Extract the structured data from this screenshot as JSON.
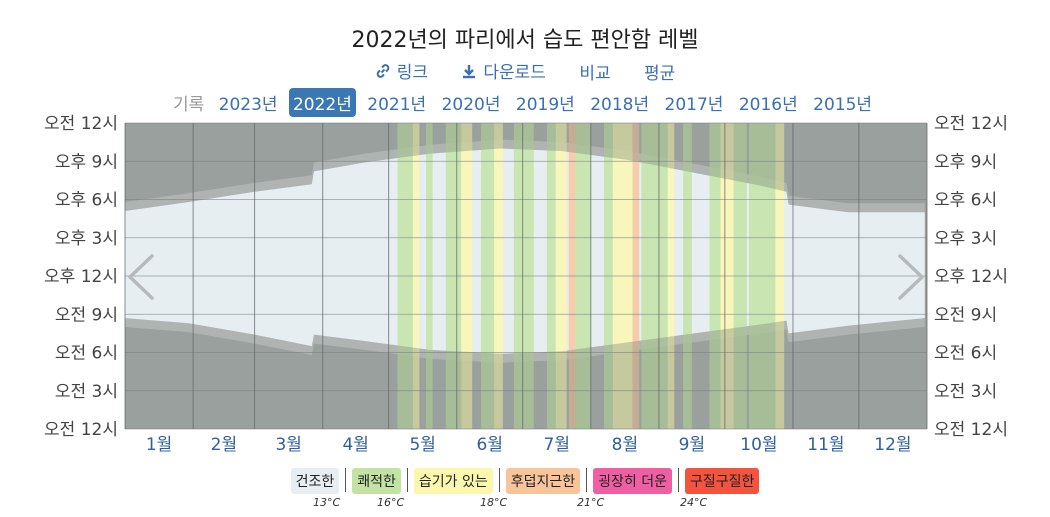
{
  "header": {
    "title": "2022년의 파리에서 습도 편안함 레벨",
    "links": [
      {
        "label": "링크",
        "icon": "link-icon"
      },
      {
        "label": "다운로드",
        "icon": "download-icon"
      },
      {
        "label": "비교",
        "icon": ""
      },
      {
        "label": "평균",
        "icon": ""
      }
    ]
  },
  "years": {
    "label": "기록",
    "items": [
      "2023년",
      "2022년",
      "2021년",
      "2020년",
      "2019년",
      "2018년",
      "2017년",
      "2016년",
      "2015년"
    ],
    "active": "2022년"
  },
  "nav": {
    "prev_icon": "chevron-left-icon",
    "next_icon": "chevron-right-icon"
  },
  "chart_data": {
    "type": "heatmap",
    "x_categories": [
      "1월",
      "2월",
      "3월",
      "4월",
      "5월",
      "6월",
      "7월",
      "8월",
      "9월",
      "10월",
      "11월",
      "12월"
    ],
    "y_ticks_left": [
      "오전 12시",
      "오후 9시",
      "오후 6시",
      "오후 3시",
      "오후 12시",
      "오전 9시",
      "오전 6시",
      "오전 3시",
      "오전 12시"
    ],
    "y_ticks_right": [
      "오전 12시",
      "오후 9시",
      "오후 6시",
      "오후 3시",
      "오후 12시",
      "오전 9시",
      "오전 6시",
      "오전 3시",
      "오전 12시"
    ],
    "ylim_hours": [
      0,
      24
    ],
    "grid": true,
    "night_band": {
      "day_of_year": [
        1,
        30,
        60,
        86,
        87,
        110,
        140,
        172,
        200,
        230,
        260,
        290,
        302,
        303,
        330,
        365
      ],
      "sunrise_hour": [
        8.7,
        8.3,
        7.4,
        6.5,
        7.4,
        6.9,
        6.2,
        5.9,
        6.1,
        6.8,
        7.5,
        8.2,
        8.5,
        7.5,
        8.1,
        8.7
      ],
      "sunset_hour": [
        17.1,
        17.8,
        18.6,
        19.2,
        20.2,
        20.9,
        21.6,
        22.0,
        21.8,
        21.1,
        20.1,
        19.1,
        18.6,
        17.6,
        17.0,
        17.0
      ]
    },
    "legend": [
      {
        "label": "건조한",
        "color": "#e6eef1"
      },
      {
        "label": "쾌적한",
        "color": "#c2e3a4"
      },
      {
        "label": "습기가 있는",
        "color": "#fbf8ad"
      },
      {
        "label": "후덥지근한",
        "color": "#f9c49a"
      },
      {
        "label": "굉장히 더운",
        "color": "#f05fa4"
      },
      {
        "label": "구질구질한",
        "color": "#f4543d"
      }
    ],
    "thresholds": [
      "13°C",
      "16°C",
      "18°C",
      "21°C",
      "24°C"
    ],
    "humid_periods": [
      {
        "start_day": 125,
        "end_day": 131,
        "level": 1
      },
      {
        "start_day": 132,
        "end_day": 134,
        "level": 2
      },
      {
        "start_day": 138,
        "end_day": 140,
        "level": 1
      },
      {
        "start_day": 147,
        "end_day": 153,
        "level": 1
      },
      {
        "start_day": 154,
        "end_day": 158,
        "level": 2
      },
      {
        "start_day": 163,
        "end_day": 168,
        "level": 1
      },
      {
        "start_day": 169,
        "end_day": 172,
        "level": 2
      },
      {
        "start_day": 178,
        "end_day": 186,
        "level": 1
      },
      {
        "start_day": 193,
        "end_day": 196,
        "level": 1
      },
      {
        "start_day": 197,
        "end_day": 201,
        "level": 2
      },
      {
        "start_day": 203,
        "end_day": 205,
        "level": 3
      },
      {
        "start_day": 206,
        "end_day": 212,
        "level": 1
      },
      {
        "start_day": 219,
        "end_day": 222,
        "level": 1
      },
      {
        "start_day": 223,
        "end_day": 231,
        "level": 2
      },
      {
        "start_day": 232,
        "end_day": 234,
        "level": 3
      },
      {
        "start_day": 236,
        "end_day": 247,
        "level": 1
      },
      {
        "start_day": 248,
        "end_day": 250,
        "level": 2
      },
      {
        "start_day": 255,
        "end_day": 258,
        "level": 1
      },
      {
        "start_day": 267,
        "end_day": 271,
        "level": 1
      },
      {
        "start_day": 272,
        "end_day": 277,
        "level": 2
      },
      {
        "start_day": 278,
        "end_day": 283,
        "level": 1
      },
      {
        "start_day": 285,
        "end_day": 296,
        "level": 1
      },
      {
        "start_day": 297,
        "end_day": 300,
        "level": 2
      }
    ]
  }
}
